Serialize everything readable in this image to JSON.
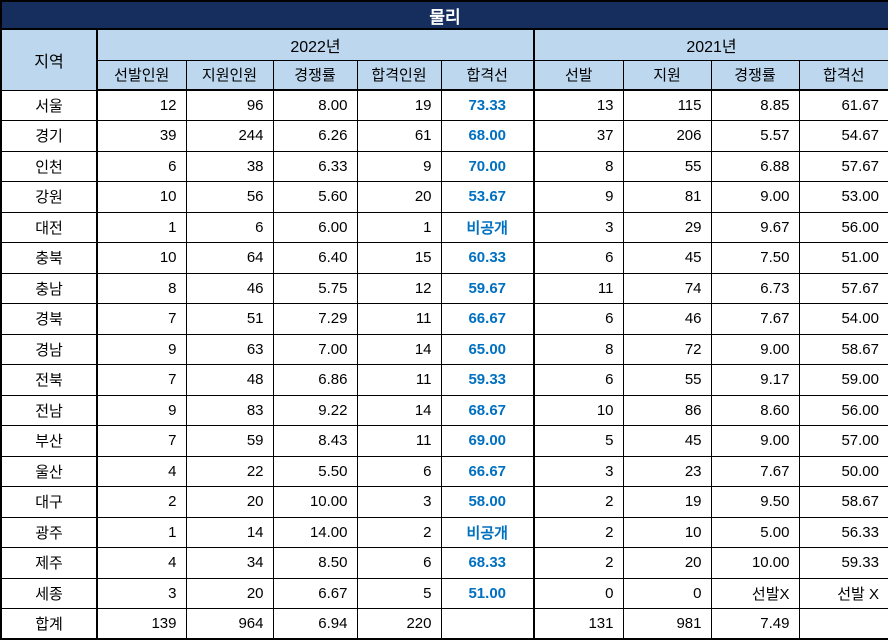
{
  "title": "물리",
  "colors": {
    "title_bg": "#152e5e",
    "title_text": "#ffffff",
    "header_bg": "#bdd7ee",
    "pass_line_text": "#0070c0",
    "grid": "#000000"
  },
  "table": {
    "region_header": "지역",
    "groups": [
      {
        "label": "2022년",
        "columns": [
          "선발인원",
          "지원인원",
          "경쟁률",
          "합격인원",
          "합격선"
        ]
      },
      {
        "label": "2021년",
        "columns": [
          "선발",
          "지원",
          "경쟁률",
          "합격선"
        ]
      }
    ],
    "rows": [
      {
        "region": "서울",
        "y2022": [
          "12",
          "96",
          "8.00",
          "19",
          "73.33"
        ],
        "y2021": [
          "13",
          "115",
          "8.85",
          "61.67"
        ]
      },
      {
        "region": "경기",
        "y2022": [
          "39",
          "244",
          "6.26",
          "61",
          "68.00"
        ],
        "y2021": [
          "37",
          "206",
          "5.57",
          "54.67"
        ]
      },
      {
        "region": "인천",
        "y2022": [
          "6",
          "38",
          "6.33",
          "9",
          "70.00"
        ],
        "y2021": [
          "8",
          "55",
          "6.88",
          "57.67"
        ]
      },
      {
        "region": "강원",
        "y2022": [
          "10",
          "56",
          "5.60",
          "20",
          "53.67"
        ],
        "y2021": [
          "9",
          "81",
          "9.00",
          "53.00"
        ]
      },
      {
        "region": "대전",
        "y2022": [
          "1",
          "6",
          "6.00",
          "1",
          "비공개"
        ],
        "y2021": [
          "3",
          "29",
          "9.67",
          "56.00"
        ]
      },
      {
        "region": "충북",
        "y2022": [
          "10",
          "64",
          "6.40",
          "15",
          "60.33"
        ],
        "y2021": [
          "6",
          "45",
          "7.50",
          "51.00"
        ]
      },
      {
        "region": "충남",
        "y2022": [
          "8",
          "46",
          "5.75",
          "12",
          "59.67"
        ],
        "y2021": [
          "11",
          "74",
          "6.73",
          "57.67"
        ]
      },
      {
        "region": "경북",
        "y2022": [
          "7",
          "51",
          "7.29",
          "11",
          "66.67"
        ],
        "y2021": [
          "6",
          "46",
          "7.67",
          "54.00"
        ]
      },
      {
        "region": "경남",
        "y2022": [
          "9",
          "63",
          "7.00",
          "14",
          "65.00"
        ],
        "y2021": [
          "8",
          "72",
          "9.00",
          "58.67"
        ]
      },
      {
        "region": "전북",
        "y2022": [
          "7",
          "48",
          "6.86",
          "11",
          "59.33"
        ],
        "y2021": [
          "6",
          "55",
          "9.17",
          "59.00"
        ]
      },
      {
        "region": "전남",
        "y2022": [
          "9",
          "83",
          "9.22",
          "14",
          "68.67"
        ],
        "y2021": [
          "10",
          "86",
          "8.60",
          "56.00"
        ]
      },
      {
        "region": "부산",
        "y2022": [
          "7",
          "59",
          "8.43",
          "11",
          "69.00"
        ],
        "y2021": [
          "5",
          "45",
          "9.00",
          "57.00"
        ]
      },
      {
        "region": "울산",
        "y2022": [
          "4",
          "22",
          "5.50",
          "6",
          "66.67"
        ],
        "y2021": [
          "3",
          "23",
          "7.67",
          "50.00"
        ]
      },
      {
        "region": "대구",
        "y2022": [
          "2",
          "20",
          "10.00",
          "3",
          "58.00"
        ],
        "y2021": [
          "2",
          "19",
          "9.50",
          "58.67"
        ]
      },
      {
        "region": "광주",
        "y2022": [
          "1",
          "14",
          "14.00",
          "2",
          "비공개"
        ],
        "y2021": [
          "2",
          "10",
          "5.00",
          "56.33"
        ]
      },
      {
        "region": "제주",
        "y2022": [
          "4",
          "34",
          "8.50",
          "6",
          "68.33"
        ],
        "y2021": [
          "2",
          "20",
          "10.00",
          "59.33"
        ]
      },
      {
        "region": "세종",
        "y2022": [
          "3",
          "20",
          "6.67",
          "5",
          "51.00"
        ],
        "y2021": [
          "0",
          "0",
          "선발X",
          "선발 X"
        ]
      },
      {
        "region": "합계",
        "y2022": [
          "139",
          "964",
          "6.94",
          "220",
          ""
        ],
        "y2021": [
          "131",
          "981",
          "7.49",
          ""
        ],
        "is_total": true
      }
    ]
  }
}
